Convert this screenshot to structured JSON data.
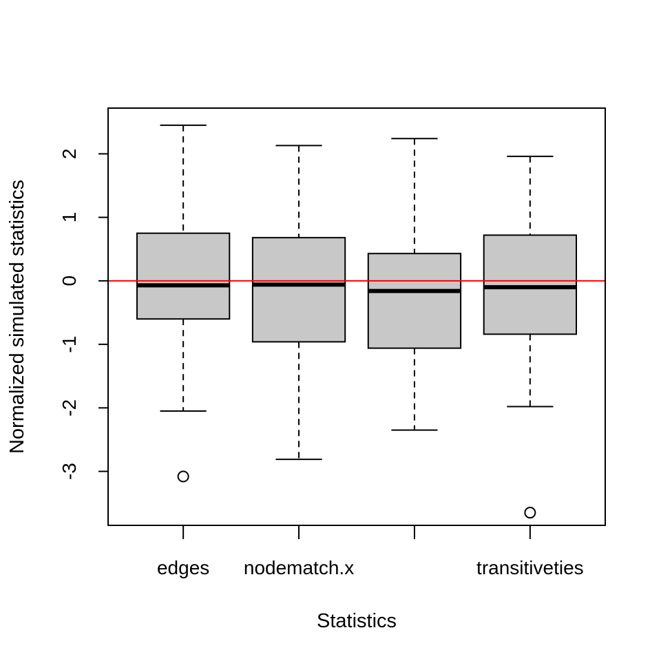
{
  "chart_data": {
    "type": "boxplot",
    "title": "",
    "xlabel": "Statistics",
    "ylabel": "Normalized simulated statistics",
    "categories": [
      "edges",
      "nodematch.x",
      "",
      "transitiveties"
    ],
    "ylim": [
      -3.85,
      2.72
    ],
    "yticks": [
      -3,
      -2,
      -1,
      0,
      1,
      2
    ],
    "ytick_labels": [
      "-3",
      "-2",
      "-1",
      "0",
      "1",
      "2"
    ],
    "reference_line": {
      "y": 0,
      "color": "#ff0000"
    },
    "box_fill": "#c8c8c8",
    "boxes": [
      {
        "name": "edges",
        "whisker_low": -2.05,
        "q1": -0.6,
        "median": -0.07,
        "q3": 0.75,
        "whisker_high": 2.45,
        "outliers": [
          -3.08
        ]
      },
      {
        "name": "nodematch.x",
        "whisker_low": -2.81,
        "q1": -0.96,
        "median": -0.06,
        "q3": 0.68,
        "whisker_high": 2.13,
        "outliers": []
      },
      {
        "name": "",
        "whisker_low": -2.35,
        "q1": -1.06,
        "median": -0.16,
        "q3": 0.43,
        "whisker_high": 2.24,
        "outliers": []
      },
      {
        "name": "transitiveties",
        "whisker_low": -1.98,
        "q1": -0.84,
        "median": -0.1,
        "q3": 0.72,
        "whisker_high": 1.96,
        "outliers": [
          -3.65
        ]
      }
    ]
  }
}
